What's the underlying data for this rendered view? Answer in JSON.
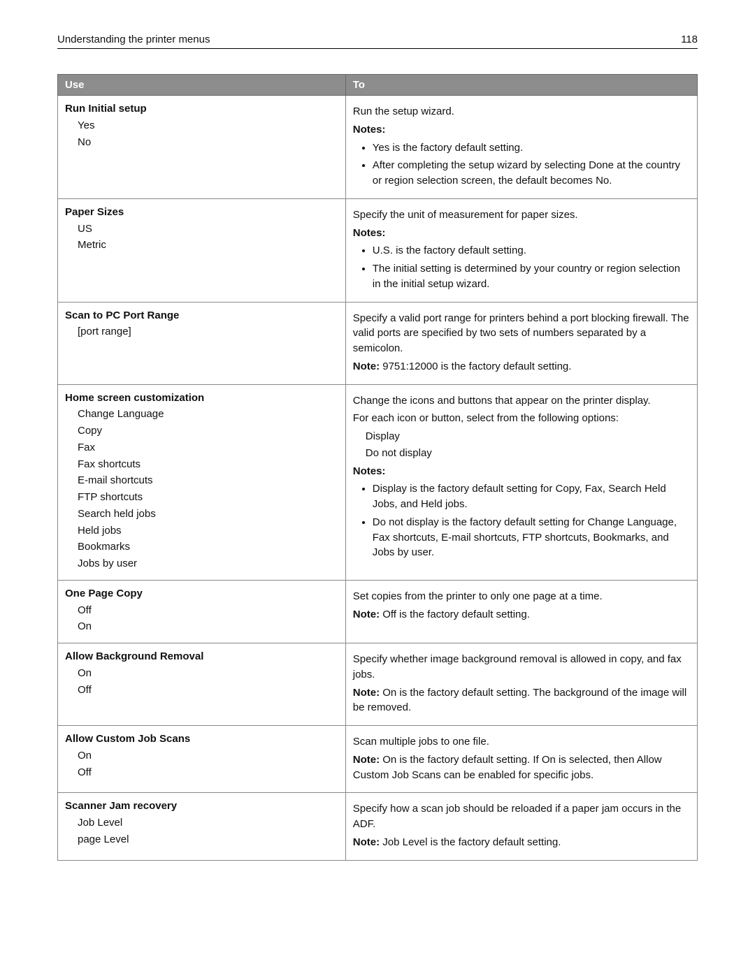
{
  "header": {
    "title": "Understanding the printer menus",
    "page_number": "118"
  },
  "table": {
    "columns": [
      "Use",
      "To"
    ],
    "rows": [
      {
        "use_title": "Run Initial setup",
        "use_options": [
          "Yes",
          "No"
        ],
        "to_intro": "Run the setup wizard.",
        "notes_label": "Notes:",
        "notes": [
          "Yes is the factory default setting.",
          "After completing the setup wizard by selecting Done at the country or region selection screen, the default becomes No."
        ]
      },
      {
        "use_title": "Paper Sizes",
        "use_options": [
          "US",
          "Metric"
        ],
        "to_intro": "Specify the unit of measurement for paper sizes.",
        "notes_label": "Notes:",
        "notes": [
          "U.S. is the factory default setting.",
          "The initial setting is determined by your country or region selection in the initial setup wizard."
        ]
      },
      {
        "use_title": "Scan to PC Port Range",
        "use_options": [
          "[port range]"
        ],
        "to_intro": "Specify a valid port range for printers behind a port blocking firewall. The valid ports are specified by two sets of numbers separated by a semicolon.",
        "note_prefix": "Note:",
        "note_text": " 9751:12000 is the factory default setting."
      },
      {
        "use_title": "Home screen customization",
        "use_options": [
          "Change Language",
          "Copy",
          "Fax",
          "Fax shortcuts",
          "E-mail shortcuts",
          "FTP shortcuts",
          "Search held jobs",
          "Held jobs",
          "Bookmarks",
          "Jobs by user"
        ],
        "to_intro": "Change the icons and buttons that appear on the printer display.",
        "to_para2": "For each icon or button, select from the following options:",
        "to_sub": [
          "Display",
          "Do not display"
        ],
        "notes_label": "Notes:",
        "notes": [
          "Display is the factory default setting for Copy, Fax, Search Held Jobs, and Held jobs.",
          "Do not display is the factory default setting for Change Language, Fax shortcuts, E-mail shortcuts, FTP shortcuts, Bookmarks, and Jobs by user."
        ]
      },
      {
        "use_title": "One Page Copy",
        "use_options": [
          "Off",
          "On"
        ],
        "to_intro": "Set copies from the printer to only one page at a time.",
        "note_prefix": "Note:",
        "note_text": " Off is the factory default setting."
      },
      {
        "use_title": "Allow Background Removal",
        "use_options": [
          "On",
          "Off"
        ],
        "to_intro": "Specify whether image background removal is allowed in copy, and fax jobs.",
        "note_prefix": "Note:",
        "note_text": " On is the factory default setting. The background of the image will be removed."
      },
      {
        "use_title": "Allow Custom Job Scans",
        "use_options": [
          "On",
          "Off"
        ],
        "to_intro": "Scan multiple jobs to one file.",
        "note_prefix": "Note:",
        "note_text": " On is the factory default setting. If On is selected, then Allow Custom Job Scans can be enabled for specific jobs."
      },
      {
        "use_title": "Scanner Jam recovery",
        "use_options": [
          "Job Level",
          "page Level"
        ],
        "to_intro": "Specify how a scan job should be reloaded if a paper jam occurs in the ADF.",
        "note_prefix": "Note:",
        "note_text": " Job Level is the factory default setting."
      }
    ]
  }
}
